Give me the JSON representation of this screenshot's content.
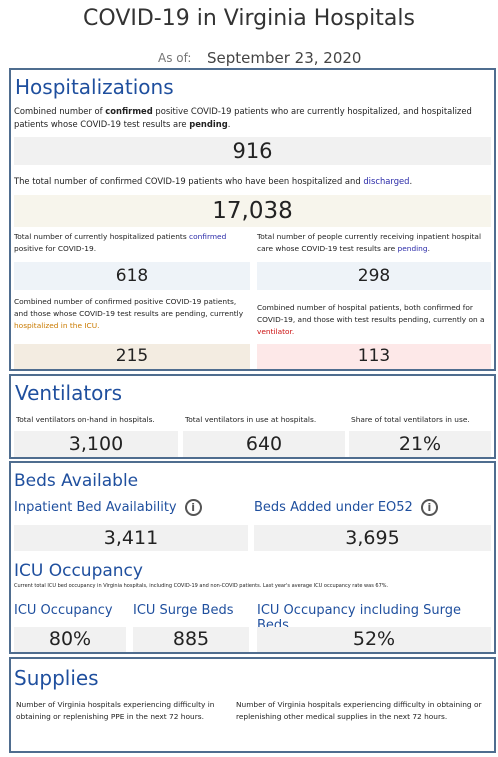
{
  "header": {
    "title": "COVID-19 in Virginia Hospitals",
    "as_of_label": "As of:",
    "date": "September 23, 2020"
  },
  "hospitalizations": {
    "title": "Hospitalizations",
    "current_desc": [
      "Combined number of ",
      "confirmed",
      " positive COVID-19 patients who are currently hospitalized, and hospitalized patients whose COVID-19 test results are ",
      "pending",
      "."
    ],
    "current_value": "916",
    "discharged_desc": [
      "The total number of confirmed COVID-19 patients who have been hospitalized and ",
      "discharged",
      "."
    ],
    "discharged_value": "17,038",
    "confirmed_desc": [
      "Total number of currently hospitalized patients ",
      "confirmed",
      " positive for COVID-19."
    ],
    "confirmed_value": "618",
    "pending_desc": [
      "Total number of people currently receiving inpatient hospital care whose COVID-19 test results are ",
      "pending",
      "."
    ],
    "pending_value": "298",
    "icu_desc": [
      "Combined number of confirmed positive COVID-19 patients, and those whose COVID-19 test results are pending, currently ",
      "hospitalized in the ICU."
    ],
    "icu_value": "215",
    "vent_desc": [
      "Combined number of hospital patients, both confirmed for COVID-19, and those with test results pending, currently on a ",
      "ventilator."
    ],
    "vent_value": "113"
  },
  "ventilators": {
    "title": "Ventilators",
    "items": [
      {
        "label": "Total ventilators on-hand in hospitals.",
        "value": "3,100"
      },
      {
        "label": "Total ventilators in use at hospitals.",
        "value": "640"
      },
      {
        "label": "Share of total ventilators in use.",
        "value": "21%"
      }
    ]
  },
  "beds": {
    "title": "Beds Available",
    "items": [
      {
        "label": "Inpatient Bed Availability",
        "value": "3,411"
      },
      {
        "label": "Beds Added under EO52",
        "value": "3,695"
      }
    ],
    "icu_title": "ICU Occupancy",
    "icu_note": "Current total ICU bed occupancy in Virginia hospitals, including COVID-19 and non-COVID patients. Last year's average ICU occupancy rate was 67%.",
    "icu_items": [
      {
        "label": "ICU Occupancy",
        "value": "80%"
      },
      {
        "label": "ICU Surge Beds",
        "value": "885"
      },
      {
        "label": "ICU Occupancy including Surge Beds",
        "value": "52%"
      }
    ]
  },
  "supplies": {
    "title": "Supplies",
    "items": [
      "Number of Virginia hospitals experiencing difficulty in obtaining or replenishing PPE in the next 72 hours.",
      "Number of Virginia hospitals experiencing difficulty in obtaining or replenishing other medical supplies in the next 72 hours."
    ]
  }
}
